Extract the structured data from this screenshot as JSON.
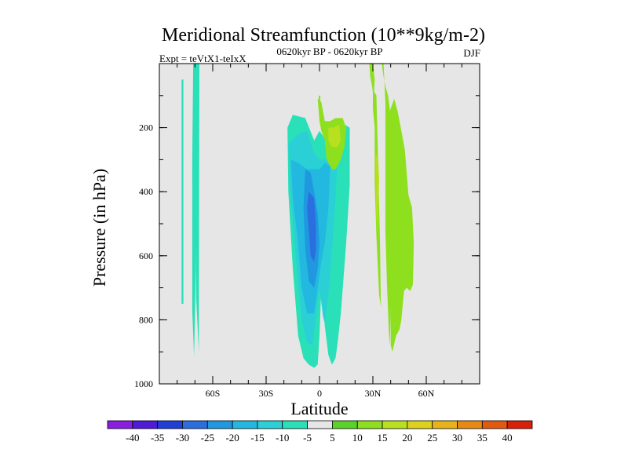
{
  "chart_data": {
    "type": "contour",
    "title": "Meridional Streamfunction (10**9kg/m-2)",
    "left_label": "Expt = teVtX1-teIxX",
    "center_label": "0620kyr BP - 0620kyr BP",
    "right_label": "DJF",
    "xlabel": "Latitude",
    "ylabel": "Pressure (in hPa)",
    "xlim": [
      -90,
      90
    ],
    "ylim": [
      1000,
      0
    ],
    "x_ticks": [
      {
        "value": -60,
        "label": "60S"
      },
      {
        "value": -30,
        "label": "30S"
      },
      {
        "value": 0,
        "label": "0"
      },
      {
        "value": 30,
        "label": "30N"
      },
      {
        "value": 60,
        "label": "60N"
      }
    ],
    "y_ticks": [
      {
        "value": 200,
        "label": "200"
      },
      {
        "value": 400,
        "label": "400"
      },
      {
        "value": 600,
        "label": "600"
      },
      {
        "value": 800,
        "label": "800"
      },
      {
        "value": 1000,
        "label": "1000"
      }
    ],
    "background_color": "#e6e6e6",
    "colorbar": {
      "levels": [
        "-40",
        "-35",
        "-30",
        "-25",
        "-20",
        "-15",
        "-10",
        "-5",
        "5",
        "10",
        "15",
        "20",
        "25",
        "30",
        "35",
        "40"
      ],
      "colors": [
        "#8a1ee0",
        "#4f1ad8",
        "#1f3fd6",
        "#2a6ee0",
        "#1f98e0",
        "#22b8e0",
        "#2ad0d6",
        "#2ae0b8",
        "#e6e6e6",
        "#5ad22a",
        "#8ee01e",
        "#b8e01e",
        "#dcd21e",
        "#e6b41a",
        "#e68a14",
        "#e25a10",
        "#d8200a"
      ]
    },
    "regions": [
      {
        "name": "sh-polar-cell",
        "level": -10,
        "points": [
          [
            -71,
            0
          ],
          [
            -69,
            0
          ],
          [
            -69,
            480
          ],
          [
            -69.5,
            650
          ],
          [
            -70.5,
            915
          ],
          [
            -71.5,
            770
          ],
          [
            -71.5,
            300
          ]
        ]
      },
      {
        "name": "sh-polar-strip",
        "level": -10,
        "points": [
          [
            -69.5,
            0
          ],
          [
            -67.5,
            0
          ],
          [
            -67.8,
            900
          ],
          [
            -69.3,
            730
          ]
        ]
      },
      {
        "name": "sh-polar-inner",
        "level": -10,
        "points": [
          [
            -77.5,
            50
          ],
          [
            -76.5,
            50
          ],
          [
            -76.5,
            750
          ],
          [
            -77.5,
            750
          ]
        ]
      },
      {
        "name": "tropical-cell-outer",
        "level": -10,
        "points": [
          [
            -18,
            200
          ],
          [
            -15,
            160
          ],
          [
            -8,
            170
          ],
          [
            -3,
            240
          ],
          [
            0,
            210
          ],
          [
            5,
            250
          ],
          [
            9,
            230
          ],
          [
            14,
            190
          ],
          [
            17,
            200
          ],
          [
            17,
            380
          ],
          [
            15,
            560
          ],
          [
            12,
            780
          ],
          [
            10,
            880
          ],
          [
            9,
            920
          ],
          [
            7,
            940
          ],
          [
            5,
            910
          ],
          [
            3,
            820
          ],
          [
            1,
            700
          ],
          [
            0,
            850
          ],
          [
            -1,
            940
          ],
          [
            -3,
            950
          ],
          [
            -6,
            940
          ],
          [
            -9,
            920
          ],
          [
            -12,
            850
          ],
          [
            -15,
            640
          ],
          [
            -17.5,
            400
          ]
        ]
      },
      {
        "name": "tropical-cell-15",
        "level": -15,
        "points": [
          [
            -17.5,
            250
          ],
          [
            -12,
            220
          ],
          [
            -7,
            210
          ],
          [
            -3,
            280
          ],
          [
            0,
            300
          ],
          [
            3,
            300
          ],
          [
            6,
            290
          ],
          [
            9,
            260
          ],
          [
            10,
            300
          ],
          [
            9,
            420
          ],
          [
            7,
            580
          ],
          [
            5,
            720
          ],
          [
            3,
            810
          ],
          [
            2,
            790
          ],
          [
            0,
            700
          ],
          [
            -2,
            790
          ],
          [
            -4,
            880
          ],
          [
            -7,
            870
          ],
          [
            -10,
            800
          ],
          [
            -13,
            620
          ],
          [
            -16.5,
            390
          ]
        ]
      },
      {
        "name": "tropical-cell-20",
        "level": -20,
        "points": [
          [
            -16,
            300
          ],
          [
            -12,
            310
          ],
          [
            -7,
            330
          ],
          [
            -3,
            330
          ],
          [
            0,
            330
          ],
          [
            3,
            310
          ],
          [
            6,
            320
          ],
          [
            5,
            450
          ],
          [
            3,
            560
          ],
          [
            1,
            620
          ],
          [
            -1,
            700
          ],
          [
            -3,
            780
          ],
          [
            -7,
            780
          ],
          [
            -10,
            700
          ],
          [
            -12,
            560
          ],
          [
            -15,
            420
          ]
        ]
      },
      {
        "name": "tropical-cell-25",
        "level": -25,
        "points": [
          [
            -8,
            330
          ],
          [
            -5,
            340
          ],
          [
            -3,
            400
          ],
          [
            -1,
            470
          ],
          [
            0,
            560
          ],
          [
            -1,
            640
          ],
          [
            -3,
            700
          ],
          [
            -6,
            680
          ],
          [
            -8,
            580
          ],
          [
            -9,
            450
          ]
        ]
      },
      {
        "name": "tropical-cell-30",
        "level": -30,
        "points": [
          [
            -6,
            400
          ],
          [
            -3,
            420
          ],
          [
            -2,
            500
          ],
          [
            -2,
            580
          ],
          [
            -3,
            620
          ],
          [
            -5,
            600
          ],
          [
            -6,
            520
          ],
          [
            -7,
            450
          ]
        ]
      },
      {
        "name": "nh-cell-outer",
        "level": 10,
        "points": [
          [
            30,
            80
          ],
          [
            30,
            140
          ],
          [
            31,
            200
          ],
          [
            31,
            370
          ],
          [
            32,
            540
          ],
          [
            33.5,
            720
          ],
          [
            34.5,
            760
          ],
          [
            34,
            560
          ],
          [
            33,
            320
          ],
          [
            32,
            100
          ]
        ]
      },
      {
        "name": "nh-cell-15",
        "level": 15,
        "points": [
          [
            31.5,
            280
          ],
          [
            33,
            300
          ],
          [
            33.5,
            360
          ],
          [
            33,
            480
          ],
          [
            32.5,
            520
          ],
          [
            32,
            480
          ],
          [
            31.5,
            380
          ]
        ]
      },
      {
        "name": "nh-upper-band",
        "level": 10,
        "points": [
          [
            35,
            0
          ],
          [
            36,
            0
          ],
          [
            37,
            120
          ],
          [
            37,
            300
          ],
          [
            37,
            520
          ],
          [
            38,
            700
          ],
          [
            39,
            840
          ],
          [
            39.5,
            880
          ],
          [
            40,
            780
          ],
          [
            41,
            600
          ],
          [
            41.5,
            410
          ],
          [
            41,
            240
          ],
          [
            39.5,
            140
          ],
          [
            38.5,
            100
          ],
          [
            37,
            70
          ],
          [
            36,
            40
          ]
        ]
      },
      {
        "name": "nh-outer-band",
        "level": 10,
        "points": [
          [
            38,
            180
          ],
          [
            40,
            140
          ],
          [
            42,
            110
          ],
          [
            44,
            150
          ],
          [
            46,
            210
          ],
          [
            48,
            270
          ],
          [
            50,
            410
          ],
          [
            52,
            450
          ],
          [
            53,
            560
          ],
          [
            52.5,
            690
          ],
          [
            51,
            710
          ],
          [
            49,
            700
          ],
          [
            47.5,
            710
          ],
          [
            46,
            800
          ],
          [
            45,
            830
          ],
          [
            43,
            850
          ],
          [
            41,
            900
          ],
          [
            40,
            880
          ],
          [
            40,
            700
          ],
          [
            39.5,
            520
          ],
          [
            38.5,
            350
          ]
        ]
      },
      {
        "name": "eq-upper-cell",
        "level": 10,
        "points": [
          [
            -1,
            110
          ],
          [
            1,
            120
          ],
          [
            3,
            180
          ],
          [
            6,
            180
          ],
          [
            9,
            170
          ],
          [
            13,
            170
          ],
          [
            15,
            200
          ],
          [
            14,
            260
          ],
          [
            12,
            300
          ],
          [
            9,
            330
          ],
          [
            7,
            330
          ],
          [
            4,
            300
          ],
          [
            3,
            240
          ],
          [
            1,
            210
          ],
          [
            0,
            180
          ]
        ]
      },
      {
        "name": "eq-upper-cell-15",
        "level": 15,
        "points": [
          [
            5,
            200
          ],
          [
            8,
            200
          ],
          [
            11,
            190
          ],
          [
            12,
            240
          ],
          [
            10,
            260
          ],
          [
            7,
            260
          ],
          [
            5,
            240
          ]
        ]
      },
      {
        "name": "eq-upper-tip",
        "level": 10,
        "points": [
          [
            -0.5,
            100
          ],
          [
            0.5,
            100
          ],
          [
            0.5,
            130
          ],
          [
            -0.5,
            130
          ]
        ]
      },
      {
        "name": "nh-upper-tip",
        "level": 10,
        "points": [
          [
            28,
            0
          ],
          [
            30,
            0
          ],
          [
            31,
            50
          ],
          [
            30.5,
            110
          ],
          [
            29.5,
            70
          ],
          [
            28.5,
            40
          ]
        ]
      }
    ]
  }
}
